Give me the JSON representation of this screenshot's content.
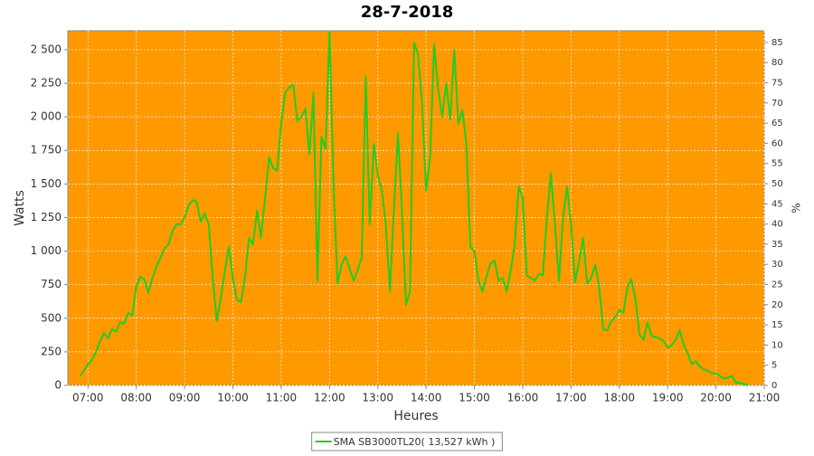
{
  "chart_data": {
    "type": "line",
    "title": "28-7-2018",
    "xlabel": "Heures",
    "ylabel": "Watts",
    "y2label": "%",
    "background": "#ff9900",
    "grid": true,
    "legend": "bottom",
    "xlim": [
      "06:35",
      "21:00"
    ],
    "xticks": [
      "07:00",
      "08:00",
      "09:00",
      "10:00",
      "11:00",
      "12:00",
      "13:00",
      "14:00",
      "15:00",
      "16:00",
      "17:00",
      "18:00",
      "19:00",
      "20:00",
      "21:00"
    ],
    "ylim": [
      0,
      2641
    ],
    "yticks": [
      0,
      250,
      500,
      750,
      {
        "value": 1000,
        "label": "1 000"
      },
      {
        "value": 1250,
        "label": "1 250"
      },
      {
        "value": 1500,
        "label": "1 500"
      },
      {
        "value": 1750,
        "label": "1 750"
      },
      {
        "value": 2000,
        "label": "2 000"
      },
      {
        "value": 2250,
        "label": "2 250"
      },
      {
        "value": 2500,
        "label": "2 500"
      }
    ],
    "y2lim": [
      0,
      87.9
    ],
    "y2ticks": [
      0,
      5,
      10,
      15,
      20,
      25,
      30,
      35,
      40,
      45,
      50,
      55,
      60,
      65,
      70,
      75,
      80,
      85
    ],
    "x": [
      "06:50",
      "06:55",
      "07:00",
      "07:05",
      "07:10",
      "07:15",
      "07:20",
      "07:25",
      "07:30",
      "07:35",
      "07:40",
      "07:45",
      "07:50",
      "07:55",
      "08:00",
      "08:05",
      "08:10",
      "08:15",
      "08:20",
      "08:25",
      "08:30",
      "08:35",
      "08:40",
      "08:45",
      "08:50",
      "08:55",
      "09:00",
      "09:05",
      "09:10",
      "09:15",
      "09:20",
      "09:25",
      "09:30",
      "09:35",
      "09:40",
      "09:45",
      "09:50",
      "09:55",
      "10:00",
      "10:05",
      "10:10",
      "10:15",
      "10:20",
      "10:25",
      "10:30",
      "10:35",
      "10:40",
      "10:45",
      "10:50",
      "10:55",
      "11:00",
      "11:05",
      "11:10",
      "11:15",
      "11:20",
      "11:25",
      "11:30",
      "11:35",
      "11:40",
      "11:45",
      "11:50",
      "11:55",
      "12:00",
      "12:05",
      "12:10",
      "12:15",
      "12:20",
      "12:25",
      "12:30",
      "12:35",
      "12:40",
      "12:45",
      "12:50",
      "12:55",
      "13:00",
      "13:05",
      "13:10",
      "13:15",
      "13:20",
      "13:25",
      "13:30",
      "13:35",
      "13:40",
      "13:45",
      "13:50",
      "13:55",
      "14:00",
      "14:05",
      "14:10",
      "14:15",
      "14:20",
      "14:25",
      "14:30",
      "14:35",
      "14:40",
      "14:45",
      "14:50",
      "14:55",
      "15:00",
      "15:05",
      "15:10",
      "15:15",
      "15:20",
      "15:25",
      "15:30",
      "15:35",
      "15:40",
      "15:45",
      "15:50",
      "15:55",
      "16:00",
      "16:05",
      "16:10",
      "16:15",
      "16:20",
      "16:25",
      "16:30",
      "16:35",
      "16:40",
      "16:45",
      "16:50",
      "16:55",
      "17:00",
      "17:05",
      "17:10",
      "17:15",
      "17:20",
      "17:25",
      "17:30",
      "17:35",
      "17:40",
      "17:45",
      "17:50",
      "17:55",
      "18:00",
      "18:05",
      "18:10",
      "18:15",
      "18:20",
      "18:25",
      "18:30",
      "18:35",
      "18:40",
      "18:45",
      "18:50",
      "18:55",
      "19:00",
      "19:05",
      "19:10",
      "19:15",
      "19:20",
      "19:25",
      "19:30",
      "19:35",
      "19:40",
      "19:45",
      "19:50",
      "19:55",
      "20:00",
      "20:05",
      "20:10",
      "20:15",
      "20:20",
      "20:25",
      "20:30",
      "20:35",
      "20:40"
    ],
    "series": [
      {
        "name": "SMA SB3000TL20( 13,527 kWh )",
        "color": "#22cc22",
        "values": [
          70,
          110,
          160,
          190,
          250,
          330,
          390,
          350,
          420,
          400,
          470,
          460,
          540,
          520,
          740,
          810,
          790,
          690,
          800,
          880,
          950,
          1020,
          1050,
          1150,
          1200,
          1200,
          1250,
          1340,
          1380,
          1370,
          1220,
          1280,
          1200,
          800,
          480,
          650,
          850,
          1030,
          800,
          640,
          620,
          800,
          1100,
          1050,
          1300,
          1100,
          1400,
          1700,
          1620,
          1600,
          1950,
          2180,
          2220,
          2240,
          1970,
          2000,
          2060,
          1720,
          2180,
          780,
          1850,
          1760,
          2630,
          1500,
          760,
          900,
          960,
          870,
          780,
          860,
          950,
          2300,
          1200,
          1800,
          1570,
          1450,
          1200,
          700,
          1300,
          1880,
          1300,
          600,
          700,
          2550,
          2470,
          2100,
          1450,
          1700,
          2540,
          2200,
          2000,
          2250,
          1980,
          2500,
          1950,
          2050,
          1800,
          1030,
          1000,
          780,
          700,
          810,
          910,
          930,
          780,
          800,
          700,
          850,
          1050,
          1480,
          1400,
          820,
          800,
          780,
          830,
          820,
          1250,
          1580,
          1200,
          780,
          1240,
          1480,
          1200,
          770,
          920,
          1100,
          760,
          800,
          900,
          730,
          420,
          410,
          480,
          510,
          560,
          540,
          730,
          790,
          640,
          380,
          340,
          470,
          370,
          360,
          350,
          330,
          280,
          300,
          340,
          410,
          300,
          240,
          160,
          180,
          140,
          120,
          110,
          90,
          90,
          70,
          50,
          60,
          70,
          20,
          20,
          10,
          0
        ]
      }
    ]
  }
}
